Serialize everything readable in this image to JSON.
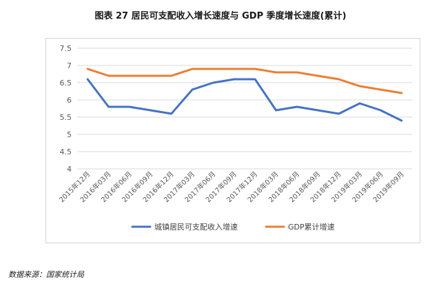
{
  "title": "图表 27  居民可支配收入增长速度与 GDP 季度增长速度(累计)",
  "source": "数据来源：国家统计局",
  "chart_data": {
    "type": "line",
    "title": "图表 27  居民可支配收入增长速度与 GDP 季度增长速度(累计)",
    "categories": [
      "2015年12月",
      "2016年03月",
      "2016年06月",
      "2016年09月",
      "2016年12月",
      "2017年03月",
      "2017年06月",
      "2017年09月",
      "2017年12月",
      "2018年03月",
      "2018年06月",
      "2018年09月",
      "2018年12月",
      "2019年03月",
      "2019年06月",
      "2019年09月"
    ],
    "series": [
      {
        "name": "城镇居民可支配收入增速",
        "color": "#4472c4",
        "values": [
          6.6,
          5.8,
          5.8,
          5.7,
          5.6,
          6.3,
          6.5,
          6.6,
          6.6,
          5.7,
          5.8,
          5.7,
          5.6,
          5.9,
          5.7,
          5.4
        ]
      },
      {
        "name": "GDP累计增速",
        "color": "#ed7d31",
        "values": [
          6.9,
          6.7,
          6.7,
          6.7,
          6.7,
          6.9,
          6.9,
          6.9,
          6.9,
          6.8,
          6.8,
          6.7,
          6.6,
          6.4,
          6.3,
          6.2
        ]
      }
    ],
    "yticks": [
      "7.5",
      "7",
      "6.5",
      "6",
      "5.5",
      "5",
      "4.5",
      "4"
    ],
    "ylim": [
      4,
      7.5
    ],
    "grid": true,
    "legend": "bottom"
  }
}
